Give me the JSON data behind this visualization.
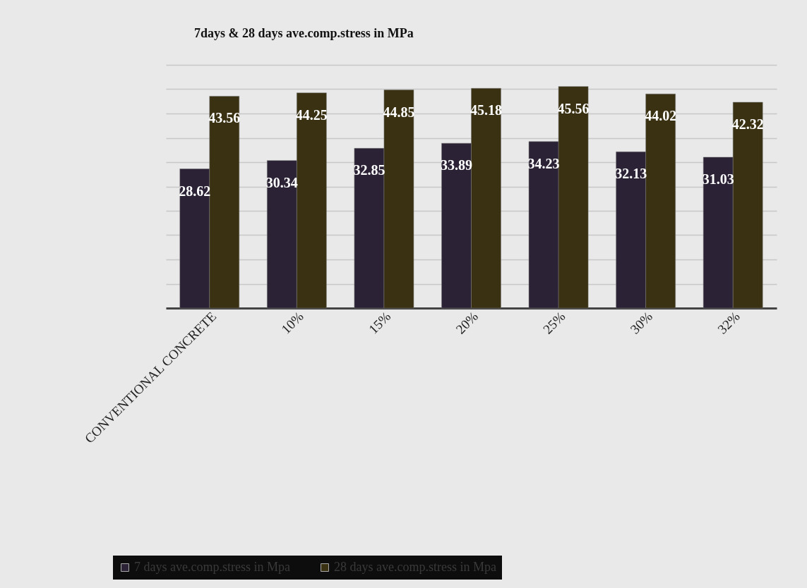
{
  "chart_data": {
    "type": "bar",
    "title": "7days & 28 days ave.comp.stress in MPa",
    "categories": [
      "CONVENTIONAL CONCRETE",
      "10%",
      "15%",
      "20%",
      "25%",
      "30%",
      "32%"
    ],
    "series": [
      {
        "name": "7 days ave.comp.stress in Mpa",
        "color": "#2b2236",
        "values": [
          28.62,
          30.34,
          32.85,
          33.89,
          34.23,
          32.13,
          31.03
        ]
      },
      {
        "name": "28 days ave.comp.stress in Mpa",
        "color": "#3a3112",
        "values": [
          43.56,
          44.25,
          44.85,
          45.18,
          45.56,
          44.02,
          42.32
        ]
      }
    ],
    "ylim": [
      0,
      50
    ],
    "yticks": [
      {
        "value": 0,
        "label": null
      },
      {
        "value": 5,
        "label": null
      },
      {
        "value": 10,
        "label": null
      },
      {
        "value": 15,
        "label": null
      },
      {
        "value": 20,
        "label": null
      },
      {
        "value": 25,
        "label": null
      },
      {
        "value": 30,
        "label": null
      },
      {
        "value": 35,
        "label": null
      },
      {
        "value": 40,
        "label": null
      },
      {
        "value": 45,
        "label": null
      },
      {
        "value": 50,
        "label": null
      }
    ],
    "grid": "y",
    "legend": "bottom",
    "data_labels": true
  }
}
